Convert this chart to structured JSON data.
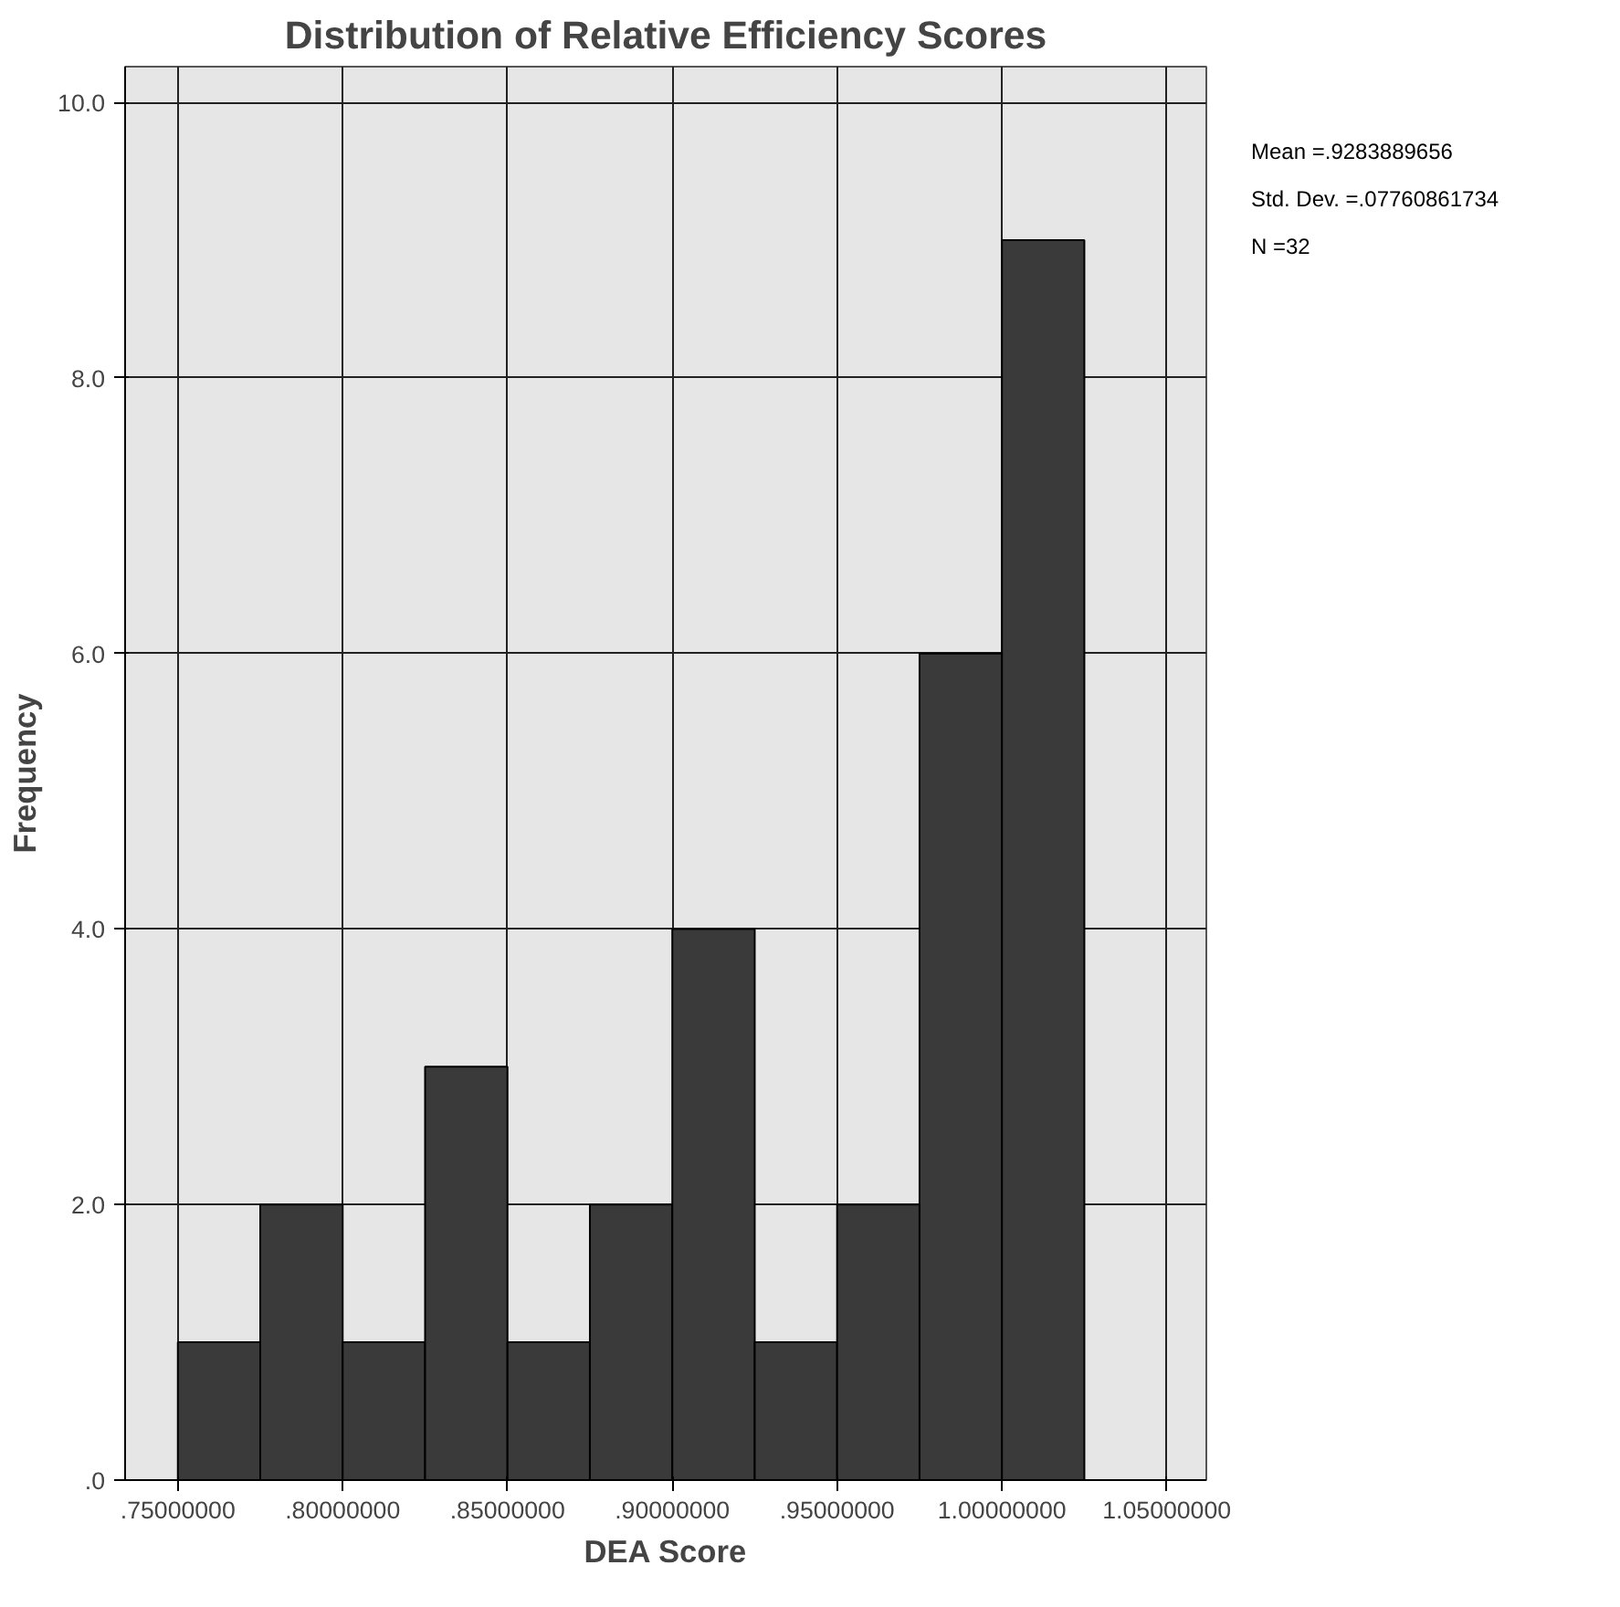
{
  "chart_data": {
    "type": "histogram",
    "title": "Distribution of Relative Efficiency Scores",
    "xlabel": "DEA Score",
    "ylabel": "Frequency",
    "bins": [
      0.75,
      0.775,
      0.8,
      0.825,
      0.85,
      0.875,
      0.9,
      0.925,
      0.95,
      0.975,
      1.0,
      1.025
    ],
    "values": [
      1,
      2,
      1,
      3,
      1,
      2,
      4,
      1,
      2,
      6,
      9
    ],
    "color": "#3a3a3a",
    "xlim": [
      0.734,
      1.062
    ],
    "ylim": [
      0,
      10.26
    ],
    "xticks": [
      {
        "value": 0.75,
        "label": ".75000000"
      },
      {
        "value": 0.8,
        "label": ".80000000"
      },
      {
        "value": 0.85,
        "label": ".85000000"
      },
      {
        "value": 0.9,
        "label": ".90000000"
      },
      {
        "value": 0.95,
        "label": ".95000000"
      },
      {
        "value": 1.0,
        "label": "1.00000000"
      },
      {
        "value": 1.05,
        "label": "1.05000000"
      }
    ],
    "yticks": [
      {
        "value": 0,
        "label": ".0"
      },
      {
        "value": 2,
        "label": "2.0"
      },
      {
        "value": 4,
        "label": "4.0"
      },
      {
        "value": 6,
        "label": "6.0"
      },
      {
        "value": 8,
        "label": "8.0"
      },
      {
        "value": 10,
        "label": "10.0"
      }
    ],
    "grid": true,
    "annotations": [
      "Mean =.9283889656",
      "Std. Dev. =.07760861734",
      "N =32"
    ]
  }
}
